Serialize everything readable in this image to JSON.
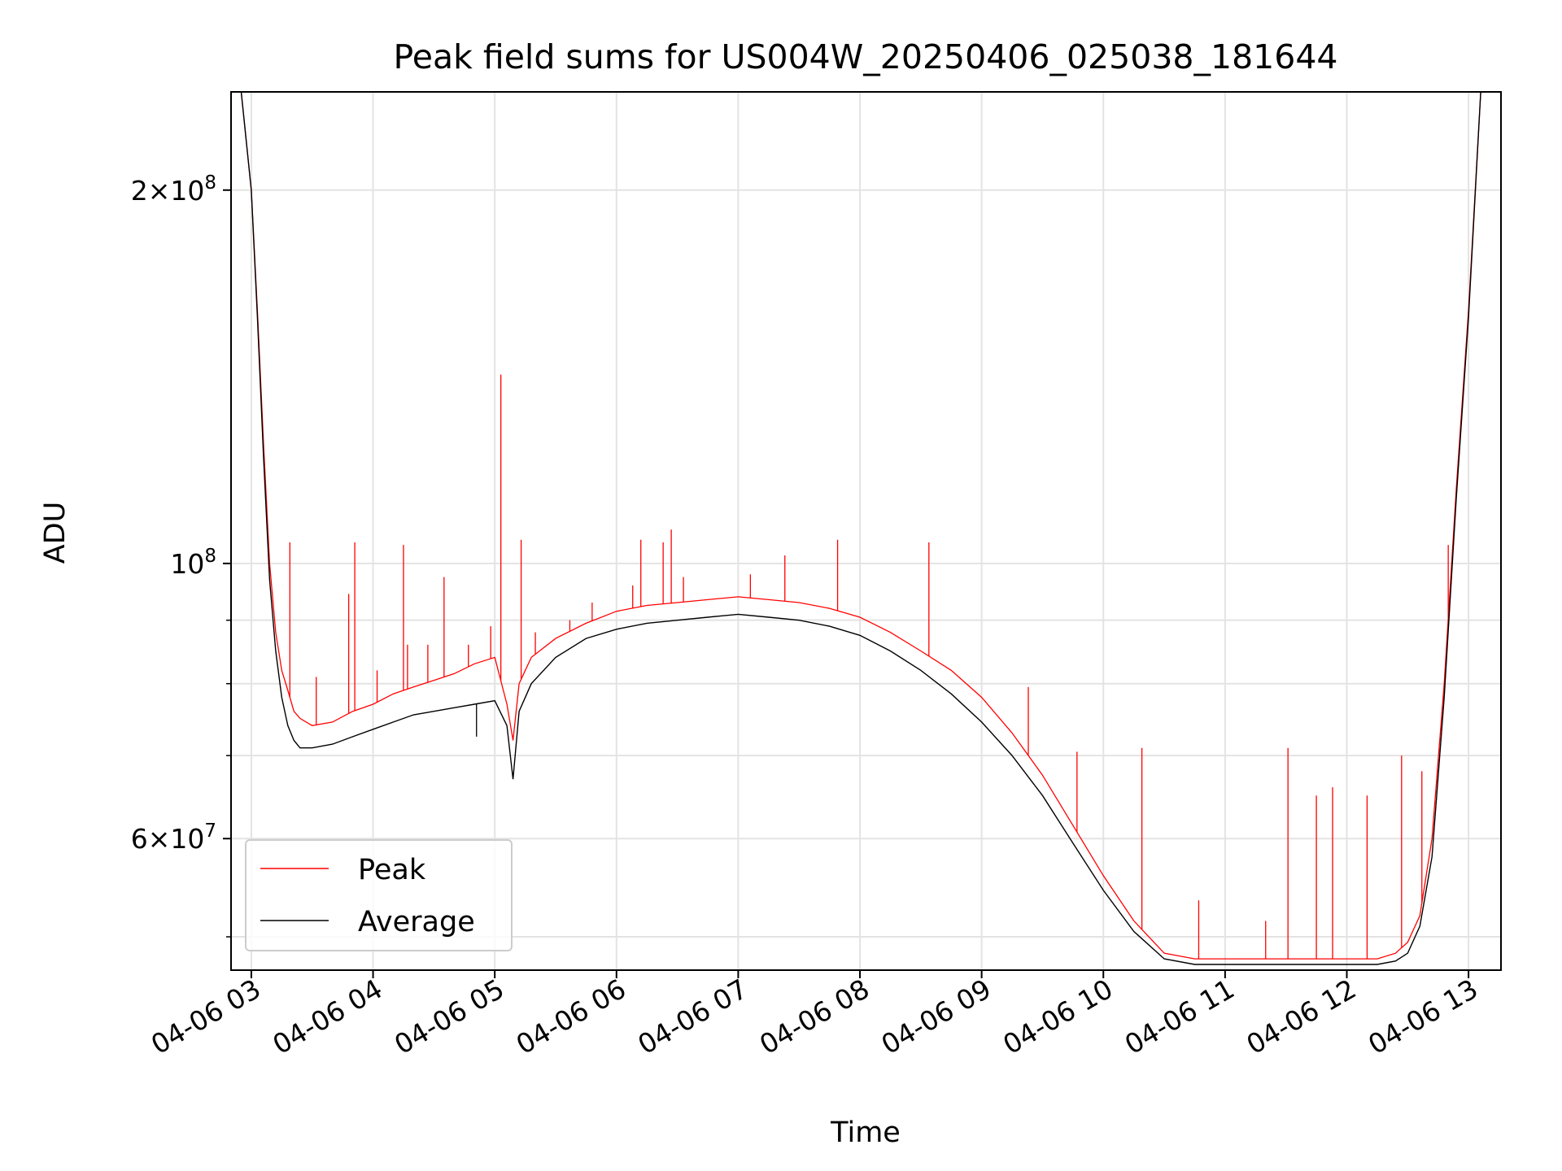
{
  "chart_data": {
    "type": "line",
    "title": "Peak field sums for US004W_20250406_025038_181644",
    "xlabel": "Time",
    "ylabel": "ADU",
    "yscale": "log",
    "grid": true,
    "legend_position": "lower-left",
    "xlim": [
      "04-06 02:50",
      "04-06 13:16"
    ],
    "ylim": [
      47000000,
      240000000
    ],
    "x_ticks": [
      "04-06 03",
      "04-06 04",
      "04-06 05",
      "04-06 06",
      "04-06 07",
      "04-06 08",
      "04-06 09",
      "04-06 10",
      "04-06 11",
      "04-06 12",
      "04-06 13"
    ],
    "y_tick_labels": [
      {
        "value": 200000000,
        "mantissa": "2",
        "exponent": "8"
      },
      {
        "value": 100000000,
        "mantissa": "",
        "exponent": "8"
      },
      {
        "value": 60000000,
        "mantissa": "6",
        "exponent": "7"
      }
    ],
    "y_minor_ticks": [
      50000000,
      70000000,
      80000000,
      90000000
    ],
    "series": [
      {
        "name": "Peak",
        "color": "#ff0000",
        "x": [
          "04-06 02:50",
          "04-06 02:55",
          "04-06 03:00",
          "04-06 03:03",
          "04-06 03:06",
          "04-06 03:09",
          "04-06 03:12",
          "04-06 03:15",
          "04-06 03:18",
          "04-06 03:21",
          "04-06 03:24",
          "04-06 03:30",
          "04-06 03:40",
          "04-06 03:50",
          "04-06 04:00",
          "04-06 04:10",
          "04-06 04:20",
          "04-06 04:30",
          "04-06 04:40",
          "04-06 04:50",
          "04-06 05:00",
          "04-06 05:06",
          "04-06 05:09",
          "04-06 05:12",
          "04-06 05:18",
          "04-06 05:30",
          "04-06 05:45",
          "04-06 06:00",
          "04-06 06:15",
          "04-06 06:30",
          "04-06 06:45",
          "04-06 07:00",
          "04-06 07:15",
          "04-06 07:30",
          "04-06 07:45",
          "04-06 08:00",
          "04-06 08:15",
          "04-06 08:30",
          "04-06 08:45",
          "04-06 09:00",
          "04-06 09:15",
          "04-06 09:30",
          "04-06 09:45",
          "04-06 10:00",
          "04-06 10:15",
          "04-06 10:30",
          "04-06 10:45",
          "04-06 11:00",
          "04-06 11:30",
          "04-06 12:00",
          "04-06 12:15",
          "04-06 12:24",
          "04-06 12:30",
          "04-06 12:36",
          "04-06 12:42",
          "04-06 12:48",
          "04-06 12:54",
          "04-06 13:00",
          "04-06 13:06",
          "04-06 13:16"
        ],
        "values": [
          240000000,
          240000000,
          200000000,
          160000000,
          125000000,
          100000000,
          88000000,
          82000000,
          79000000,
          76000000,
          75000000,
          74000000,
          74500000,
          76000000,
          77000000,
          78500000,
          79500000,
          80500000,
          81500000,
          83000000,
          84000000,
          77000000,
          72000000,
          80000000,
          84000000,
          87000000,
          89500000,
          91500000,
          92500000,
          93000000,
          93500000,
          94000000,
          93500000,
          93000000,
          92000000,
          90500000,
          88000000,
          85000000,
          82000000,
          78000000,
          73000000,
          67500000,
          61500000,
          56000000,
          51500000,
          48500000,
          48000000,
          48000000,
          48000000,
          48000000,
          48000000,
          48500000,
          49500000,
          52000000,
          60000000,
          80000000,
          115000000,
          160000000,
          240000000,
          240000000
        ]
      },
      {
        "name": "Average",
        "color": "#000000",
        "x": [
          "04-06 02:50",
          "04-06 02:55",
          "04-06 03:00",
          "04-06 03:03",
          "04-06 03:06",
          "04-06 03:09",
          "04-06 03:12",
          "04-06 03:15",
          "04-06 03:18",
          "04-06 03:21",
          "04-06 03:24",
          "04-06 03:30",
          "04-06 03:40",
          "04-06 03:50",
          "04-06 04:00",
          "04-06 04:10",
          "04-06 04:20",
          "04-06 04:30",
          "04-06 04:40",
          "04-06 04:50",
          "04-06 05:00",
          "04-06 05:06",
          "04-06 05:09",
          "04-06 05:12",
          "04-06 05:18",
          "04-06 05:30",
          "04-06 05:45",
          "04-06 06:00",
          "04-06 06:15",
          "04-06 06:30",
          "04-06 06:45",
          "04-06 07:00",
          "04-06 07:15",
          "04-06 07:30",
          "04-06 07:45",
          "04-06 08:00",
          "04-06 08:15",
          "04-06 08:30",
          "04-06 08:45",
          "04-06 09:00",
          "04-06 09:15",
          "04-06 09:30",
          "04-06 09:45",
          "04-06 10:00",
          "04-06 10:15",
          "04-06 10:30",
          "04-06 10:45",
          "04-06 11:00",
          "04-06 11:30",
          "04-06 12:00",
          "04-06 12:15",
          "04-06 12:24",
          "04-06 12:30",
          "04-06 12:36",
          "04-06 12:42",
          "04-06 12:48",
          "04-06 12:54",
          "04-06 13:00",
          "04-06 13:06",
          "04-06 13:16"
        ],
        "values": [
          240000000,
          240000000,
          200000000,
          158000000,
          122000000,
          97000000,
          85000000,
          78000000,
          74000000,
          72000000,
          71000000,
          71000000,
          71500000,
          72500000,
          73500000,
          74500000,
          75500000,
          76000000,
          76500000,
          77000000,
          77500000,
          74000000,
          67000000,
          76000000,
          80000000,
          84000000,
          87000000,
          88500000,
          89500000,
          90000000,
          90500000,
          91000000,
          90500000,
          90000000,
          89000000,
          87500000,
          85000000,
          82000000,
          78500000,
          74500000,
          70000000,
          65000000,
          59500000,
          54500000,
          50500000,
          48000000,
          47500000,
          47500000,
          47500000,
          47500000,
          47500000,
          47800000,
          48500000,
          51000000,
          58000000,
          78000000,
          113000000,
          158000000,
          240000000,
          240000000
        ]
      }
    ],
    "peak_spikes": [
      {
        "x": "04-06 03:19",
        "y": 104000000
      },
      {
        "x": "04-06 03:32",
        "y": 81000000
      },
      {
        "x": "04-06 03:48",
        "y": 94500000
      },
      {
        "x": "04-06 03:51",
        "y": 104000000
      },
      {
        "x": "04-06 04:02",
        "y": 82000000
      },
      {
        "x": "04-06 04:15",
        "y": 103500000
      },
      {
        "x": "04-06 04:17",
        "y": 86000000
      },
      {
        "x": "04-06 04:27",
        "y": 86000000
      },
      {
        "x": "04-06 04:35",
        "y": 97500000
      },
      {
        "x": "04-06 04:47",
        "y": 86000000
      },
      {
        "x": "04-06 04:58",
        "y": 89000000
      },
      {
        "x": "04-06 05:03",
        "y": 142000000
      },
      {
        "x": "04-06 05:13",
        "y": 104500000
      },
      {
        "x": "04-06 05:20",
        "y": 88000000
      },
      {
        "x": "04-06 05:37",
        "y": 90000000
      },
      {
        "x": "04-06 05:48",
        "y": 93000000
      },
      {
        "x": "04-06 06:08",
        "y": 96000000
      },
      {
        "x": "04-06 06:12",
        "y": 104500000
      },
      {
        "x": "04-06 06:23",
        "y": 104000000
      },
      {
        "x": "04-06 06:27",
        "y": 106500000
      },
      {
        "x": "04-06 06:33",
        "y": 97500000
      },
      {
        "x": "04-06 07:06",
        "y": 98000000
      },
      {
        "x": "04-06 07:23",
        "y": 101500000
      },
      {
        "x": "04-06 07:49",
        "y": 104500000
      },
      {
        "x": "04-06 08:34",
        "y": 104000000
      },
      {
        "x": "04-06 09:23",
        "y": 79500000
      },
      {
        "x": "04-06 09:47",
        "y": 70500000
      },
      {
        "x": "04-06 10:19",
        "y": 71000000
      },
      {
        "x": "04-06 10:47",
        "y": 53500000
      },
      {
        "x": "04-06 11:20",
        "y": 51500000
      },
      {
        "x": "04-06 11:31",
        "y": 71000000
      },
      {
        "x": "04-06 11:45",
        "y": 65000000
      },
      {
        "x": "04-06 11:53",
        "y": 66000000
      },
      {
        "x": "04-06 12:10",
        "y": 65000000
      },
      {
        "x": "04-06 12:27",
        "y": 70000000
      },
      {
        "x": "04-06 12:37",
        "y": 68000000
      },
      {
        "x": "04-06 12:50",
        "y": 103500000
      }
    ],
    "dips": [
      {
        "x": "04-06 04:51",
        "series": "Average",
        "y": 72500000
      }
    ]
  },
  "legend": {
    "entries": [
      {
        "label": "Peak",
        "color": "#ff0000"
      },
      {
        "label": "Average",
        "color": "#000000"
      }
    ]
  }
}
